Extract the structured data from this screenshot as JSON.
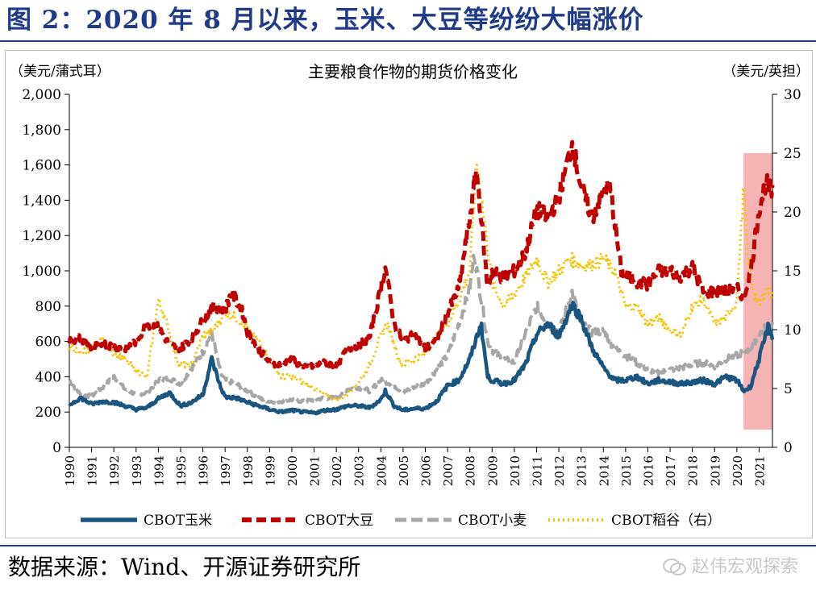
{
  "figure": {
    "title": "图 2：2020 年 8 月以来，玉米、大豆等纷纷大幅涨价",
    "source": "数据来源：Wind、开源证券研究所",
    "watermark": "赵伟宏观探索"
  },
  "colors": {
    "title": "#1f3a8a",
    "corn": "#1a5580",
    "soybean": "#c00000",
    "wheat": "#a6a6a6",
    "rice": "#f5c200",
    "highlight": "#f4a6a6"
  },
  "chart_data": {
    "type": "line",
    "title": "主要粮食作物的期货价格变化",
    "ylabel_left": "（美元/蒲式耳）",
    "ylabel_right": "（美元/英担）",
    "ylim_left": [
      0,
      2000
    ],
    "ylim_right": [
      0,
      30
    ],
    "yticks_left": [
      "0",
      "200",
      "400",
      "600",
      "800",
      "1,000",
      "1,200",
      "1,400",
      "1,600",
      "1,800",
      "2,000"
    ],
    "yticks_right": [
      "0",
      "5",
      "10",
      "15",
      "20",
      "25",
      "30"
    ],
    "x_range": [
      1990,
      2021.6
    ],
    "xticks": [
      "1990",
      "1991",
      "1992",
      "1993",
      "1994",
      "1995",
      "1996",
      "1997",
      "1998",
      "1999",
      "2000",
      "2001",
      "2002",
      "2003",
      "2004",
      "2005",
      "2006",
      "2007",
      "2008",
      "2009",
      "2010",
      "2011",
      "2012",
      "2013",
      "2014",
      "2015",
      "2016",
      "2017",
      "2018",
      "2019",
      "2020",
      "2021"
    ],
    "highlight_range": [
      2020.3,
      2021.6
    ],
    "series": [
      {
        "name": "CBOT玉米",
        "axis": "left",
        "style": "solid",
        "x": [
          1990,
          1990.5,
          1991,
          1991.5,
          1992,
          1992.5,
          1993,
          1993.5,
          1994,
          1994.5,
          1995,
          1995.5,
          1996,
          1996.4,
          1996.8,
          1997,
          1997.5,
          1998,
          1998.5,
          1999,
          1999.5,
          2000,
          2000.5,
          2001,
          2001.5,
          2002,
          2002.5,
          2003,
          2003.5,
          2004,
          2004.2,
          2004.6,
          2005,
          2005.5,
          2006,
          2006.5,
          2007,
          2007.5,
          2008,
          2008.5,
          2008.8,
          2009,
          2009.5,
          2010,
          2010.5,
          2011,
          2011.5,
          2012,
          2012.6,
          2013,
          2013.5,
          2014,
          2014.5,
          2015,
          2015.5,
          2016,
          2016.5,
          2017,
          2017.5,
          2018,
          2018.5,
          2019,
          2019.5,
          2020,
          2020.3,
          2020.6,
          2021,
          2021.4,
          2021.6
        ],
        "y": [
          240,
          280,
          245,
          260,
          255,
          235,
          215,
          225,
          275,
          310,
          235,
          255,
          300,
          500,
          340,
          285,
          280,
          255,
          235,
          215,
          200,
          210,
          200,
          195,
          210,
          215,
          235,
          235,
          225,
          270,
          320,
          235,
          210,
          220,
          220,
          260,
          350,
          380,
          500,
          700,
          400,
          380,
          360,
          380,
          470,
          640,
          700,
          630,
          810,
          730,
          560,
          450,
          380,
          380,
          400,
          360,
          380,
          370,
          360,
          370,
          380,
          360,
          400,
          380,
          320,
          340,
          500,
          680,
          630
        ]
      },
      {
        "name": "CBOT大豆",
        "axis": "left",
        "style": "dashed",
        "x": [
          1990,
          1990.5,
          1991,
          1991.5,
          1992,
          1992.5,
          1993,
          1993.5,
          1994,
          1994.5,
          1995,
          1995.5,
          1996,
          1996.5,
          1997,
          1997.3,
          1997.8,
          1998,
          1998.5,
          1999,
          1999.5,
          2000,
          2000.5,
          2001,
          2001.5,
          2002,
          2002.5,
          2003,
          2003.5,
          2004,
          2004.2,
          2004.6,
          2005,
          2005.5,
          2006,
          2006.5,
          2007,
          2007.5,
          2008,
          2008.3,
          2008.8,
          2009,
          2009.5,
          2010,
          2010.5,
          2011,
          2011.5,
          2012,
          2012.6,
          2013,
          2013.5,
          2014,
          2014.3,
          2014.8,
          2015,
          2015.5,
          2016,
          2016.5,
          2017,
          2017.5,
          2018,
          2018.5,
          2019,
          2019.5,
          2020,
          2020.3,
          2020.6,
          2021,
          2021.3,
          2021.6
        ],
        "y": [
          600,
          620,
          560,
          590,
          570,
          560,
          600,
          700,
          680,
          580,
          560,
          620,
          720,
          800,
          780,
          880,
          760,
          650,
          560,
          480,
          470,
          500,
          450,
          460,
          480,
          460,
          560,
          580,
          620,
          900,
          1020,
          700,
          600,
          640,
          560,
          600,
          760,
          900,
          1300,
          1580,
          900,
          1000,
          960,
          1000,
          1100,
          1350,
          1300,
          1420,
          1720,
          1480,
          1300,
          1450,
          1480,
          1000,
          980,
          940,
          920,
          1000,
          1000,
          970,
          1020,
          880,
          880,
          880,
          900,
          850,
          980,
          1350,
          1500,
          1440
        ]
      },
      {
        "name": "CBOT小麦",
        "axis": "left",
        "style": "dashed",
        "x": [
          1990,
          1990.5,
          1991,
          1991.5,
          1992,
          1992.5,
          1993,
          1993.5,
          1994,
          1994.5,
          1995,
          1995.5,
          1996,
          1996.4,
          1996.8,
          1997,
          1997.5,
          1998,
          1998.5,
          1999,
          1999.5,
          2000,
          2000.5,
          2001,
          2001.5,
          2002,
          2002.5,
          2003,
          2003.5,
          2004,
          2004.5,
          2005,
          2005.5,
          2006,
          2006.5,
          2007,
          2007.5,
          2008,
          2008.2,
          2008.8,
          2009,
          2009.5,
          2010,
          2010.5,
          2011,
          2011.5,
          2012,
          2012.6,
          2013,
          2013.5,
          2014,
          2014.5,
          2015,
          2015.5,
          2016,
          2016.5,
          2017,
          2017.5,
          2018,
          2018.5,
          2019,
          2019.5,
          2020,
          2020.3,
          2020.6,
          2021,
          2021.3,
          2021.6
        ],
        "y": [
          380,
          300,
          290,
          340,
          400,
          330,
          300,
          310,
          380,
          390,
          360,
          450,
          540,
          650,
          420,
          380,
          360,
          320,
          280,
          260,
          260,
          270,
          260,
          270,
          280,
          280,
          330,
          340,
          320,
          380,
          360,
          310,
          340,
          360,
          440,
          520,
          700,
          900,
          1100,
          600,
          550,
          500,
          480,
          650,
          800,
          700,
          650,
          880,
          700,
          650,
          660,
          560,
          520,
          480,
          440,
          420,
          440,
          450,
          470,
          480,
          460,
          500,
          520,
          540,
          560,
          640,
          680,
          700
        ]
      },
      {
        "name": "CBOT稻谷（右）",
        "axis": "right",
        "style": "dotted",
        "x": [
          1990,
          1990.5,
          1991,
          1991.5,
          1992,
          1992.5,
          1993,
          1993.5,
          1994,
          1994.4,
          1994.8,
          1995,
          1995.5,
          1996,
          1996.5,
          1997,
          1997.5,
          1998,
          1998.5,
          1999,
          1999.5,
          2000,
          2000.5,
          2001,
          2001.5,
          2002,
          2002.5,
          2003,
          2003.5,
          2004,
          2004.3,
          2004.8,
          2005,
          2005.5,
          2006,
          2006.5,
          2007,
          2007.5,
          2008,
          2008.3,
          2008.8,
          2009,
          2009.5,
          2010,
          2010.5,
          2011,
          2011.5,
          2012,
          2012.5,
          2013,
          2013.5,
          2014,
          2014.5,
          2015,
          2015.5,
          2016,
          2016.5,
          2017,
          2017.5,
          2018,
          2018.5,
          2019,
          2019.5,
          2020,
          2020.3,
          2020.5,
          2020.8,
          2021,
          2021.3,
          2021.6
        ],
        "y": [
          8.5,
          8.0,
          8.5,
          9.0,
          8.0,
          7.5,
          6.5,
          6.0,
          12.5,
          10.5,
          7.5,
          7.0,
          7.0,
          9.5,
          10.0,
          11.5,
          11.0,
          10.0,
          9.0,
          7.5,
          6.0,
          6.0,
          5.5,
          5.0,
          4.5,
          4.0,
          4.5,
          5.5,
          7.0,
          9.5,
          10.5,
          7.5,
          7.0,
          7.5,
          8.0,
          9.5,
          10.5,
          12.5,
          15.0,
          24.5,
          17.0,
          14.0,
          12.0,
          13.0,
          14.5,
          16.0,
          14.0,
          15.0,
          16.0,
          15.5,
          15.5,
          16.0,
          15.0,
          12.0,
          12.0,
          10.5,
          11.0,
          10.0,
          9.5,
          12.0,
          12.5,
          10.5,
          11.0,
          12.5,
          22.0,
          16.0,
          13.0,
          12.0,
          13.5,
          13.0
        ]
      }
    ]
  }
}
